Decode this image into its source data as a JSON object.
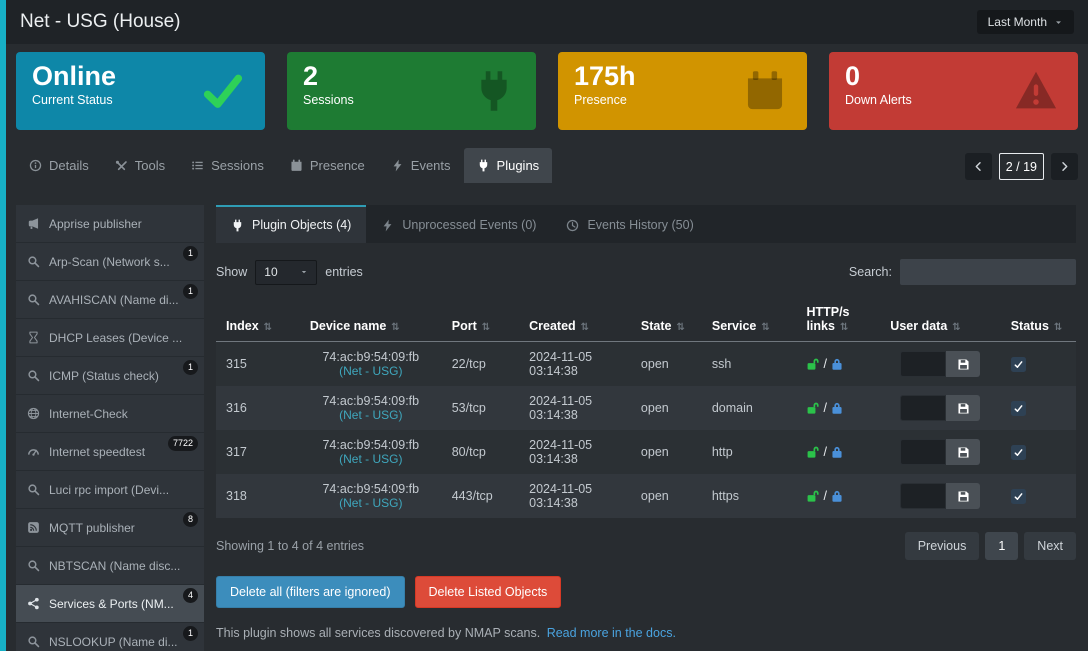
{
  "colors": {
    "accent_strip": "#17b0c6",
    "link": "#3fa7bd",
    "lock_open": "#2bc24a",
    "lock_closed": "#4a90d9",
    "primary_button": "#3c8dbc",
    "danger_button": "#dd4b39"
  },
  "header": {
    "title": "Net - USG (House)",
    "period": "Last Month"
  },
  "cards": [
    {
      "value": "Online",
      "label": "Current Status",
      "color": "#0e87a8",
      "icon": "check-icon",
      "icon_color": "#2ed158"
    },
    {
      "value": "2",
      "label": "Sessions",
      "color": "#1e7b33",
      "icon": "plug-icon",
      "icon_color": "rgba(0,0,0,0.30)"
    },
    {
      "value": "175h",
      "label": "Presence",
      "color": "#d19400",
      "icon": "calendar-icon",
      "icon_color": "rgba(0,0,0,0.30)"
    },
    {
      "value": "0",
      "label": "Down Alerts",
      "color": "#c23b35",
      "icon": "warning-icon",
      "icon_color": "rgba(0,0,0,0.30)"
    }
  ],
  "nav_tabs": [
    {
      "label": "Details",
      "icon": "info-icon",
      "active": false
    },
    {
      "label": "Tools",
      "icon": "tools-icon",
      "active": false
    },
    {
      "label": "Sessions",
      "icon": "list-icon",
      "active": false
    },
    {
      "label": "Presence",
      "icon": "calendar-icon",
      "active": false
    },
    {
      "label": "Events",
      "icon": "bolt-icon",
      "active": false
    },
    {
      "label": "Plugins",
      "icon": "plug-icon",
      "active": true
    }
  ],
  "pager": {
    "current": "2 / 19"
  },
  "sidebar": {
    "items": [
      {
        "label": "Apprise publisher",
        "icon": "megaphone-icon",
        "badge": null,
        "selected": false
      },
      {
        "label": "Arp-Scan (Network s...",
        "icon": "search-icon",
        "badge": "1",
        "selected": false
      },
      {
        "label": "AVAHISCAN (Name di...",
        "icon": "search-icon",
        "badge": "1",
        "selected": false
      },
      {
        "label": "DHCP Leases (Device ...",
        "icon": "hourglass-icon",
        "badge": null,
        "selected": false
      },
      {
        "label": "ICMP (Status check)",
        "icon": "search-icon",
        "badge": "1",
        "selected": false
      },
      {
        "label": "Internet-Check",
        "icon": "globe-icon",
        "badge": null,
        "selected": false
      },
      {
        "label": "Internet speedtest",
        "icon": "gauge-icon",
        "badge": "7722",
        "selected": false
      },
      {
        "label": "Luci rpc import (Devi...",
        "icon": "search-icon",
        "badge": null,
        "selected": false
      },
      {
        "label": "MQTT publisher",
        "icon": "mqtt-icon",
        "badge": "8",
        "selected": false
      },
      {
        "label": "NBTSCAN (Name disc...",
        "icon": "search-icon",
        "badge": null,
        "selected": false
      },
      {
        "label": "Services & Ports (NM...",
        "icon": "network-icon",
        "badge": "4",
        "selected": true
      },
      {
        "label": "NSLOOKUP (Name di...",
        "icon": "search-icon",
        "badge": "1",
        "selected": false
      }
    ]
  },
  "plugin_tabs": [
    {
      "label": "Plugin Objects (4)",
      "icon": "plug-icon",
      "active": true
    },
    {
      "label": "Unprocessed Events (0)",
      "icon": "bolt-icon",
      "active": false
    },
    {
      "label": "Events History (50)",
      "icon": "clock-icon",
      "active": false
    }
  ],
  "controls": {
    "show_label": "Show",
    "entries_value": "10",
    "entries_label": "entries",
    "search_label": "Search:"
  },
  "table": {
    "columns": [
      "Index",
      "Device name",
      "Port",
      "Created",
      "State",
      "Service",
      "HTTP/s links",
      "User data",
      "Status"
    ],
    "rows": [
      {
        "index": "315",
        "device": "74:ac:b9:54:09:fb",
        "device_link": "(Net - USG)",
        "port": "22/tcp",
        "created_date": "2024-11-05",
        "created_time": "03:14:38",
        "state": "open",
        "service": "ssh",
        "status_checked": true
      },
      {
        "index": "316",
        "device": "74:ac:b9:54:09:fb",
        "device_link": "(Net - USG)",
        "port": "53/tcp",
        "created_date": "2024-11-05",
        "created_time": "03:14:38",
        "state": "open",
        "service": "domain",
        "status_checked": true
      },
      {
        "index": "317",
        "device": "74:ac:b9:54:09:fb",
        "device_link": "(Net - USG)",
        "port": "80/tcp",
        "created_date": "2024-11-05",
        "created_time": "03:14:38",
        "state": "open",
        "service": "http",
        "status_checked": true
      },
      {
        "index": "318",
        "device": "74:ac:b9:54:09:fb",
        "device_link": "(Net - USG)",
        "port": "443/tcp",
        "created_date": "2024-11-05",
        "created_time": "03:14:38",
        "state": "open",
        "service": "https",
        "status_checked": true
      }
    ]
  },
  "table_footer": {
    "showing": "Showing 1 to 4 of 4 entries",
    "previous": "Previous",
    "page": "1",
    "next": "Next"
  },
  "actions": {
    "delete_all": "Delete all (filters are ignored)",
    "delete_listed": "Delete Listed Objects"
  },
  "note": {
    "text": "This plugin shows all services discovered by NMAP scans.",
    "link": "Read more in the docs."
  }
}
